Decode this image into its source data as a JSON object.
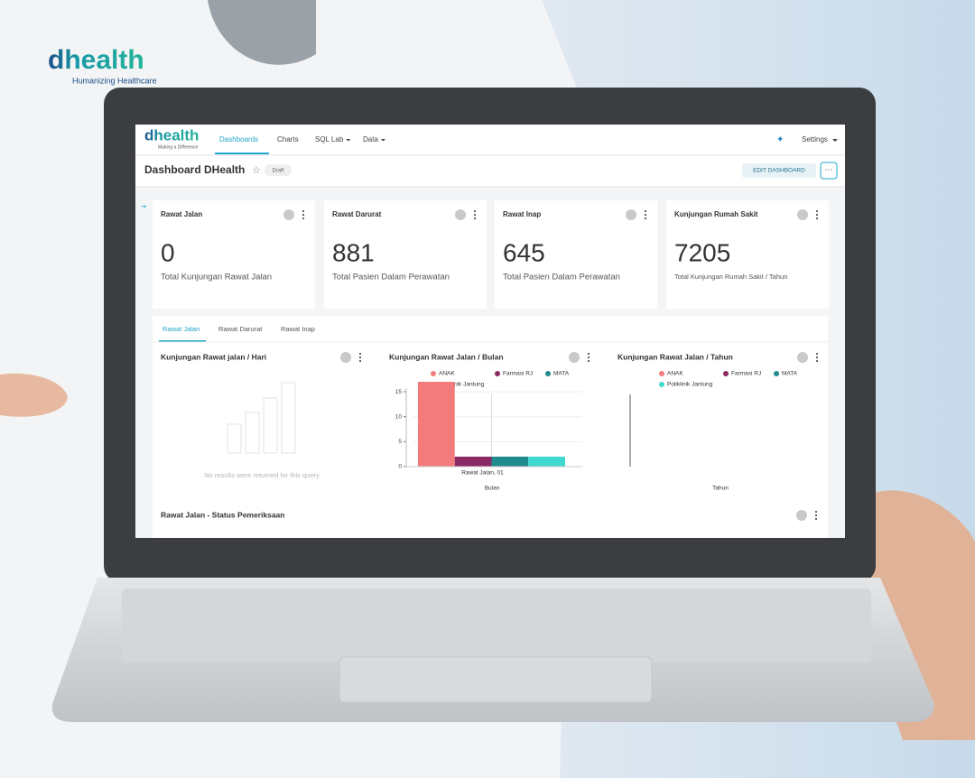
{
  "brand": {
    "logo": "dhealth",
    "tagline": "Humanizing Healthcare"
  },
  "nav": {
    "logo": "dhealth",
    "logo_tagline": "Making a Difference",
    "items": [
      "Dashboards",
      "Charts",
      "SQL Lab",
      "Data"
    ],
    "settings": "Settings"
  },
  "header": {
    "title": "Dashboard DHealth",
    "badge": "Draft",
    "edit_button": "EDIT DASHBOARD"
  },
  "kpis": [
    {
      "title": "Rawat Jalan",
      "value": 0,
      "caption": "Total Kunjungan Rawat Jalan"
    },
    {
      "title": "Rawat Darurat",
      "value": 881,
      "caption": "Total Pasien Dalam Perawatan"
    },
    {
      "title": "Rawat Inap",
      "value": 645,
      "caption": "Total Pasien Dalam Perawatan"
    },
    {
      "title": "Kunjungan Rumah Sakit",
      "value": 7205,
      "caption": "Total Kunjungan Rumah Sakit / Tahun"
    }
  ],
  "tabs": [
    "Rawat Jalan",
    "Rawat Darurat",
    "Rawat Inap"
  ],
  "panels": [
    {
      "title": "Kunjungan Rawat jalan / Hari",
      "empty_message": "No results were returned for this query"
    },
    {
      "title": "Kunjungan Rawat Jalan / Bulan",
      "chart": {
        "type": "bar",
        "categories": [
          "Rawat Jalan, 01"
        ],
        "x_label": "Bulan",
        "series": [
          {
            "name": "ANAK",
            "color": "#f47b7b",
            "values": [
              17
            ]
          },
          {
            "name": "Farmasi RJ",
            "color": "#8a2a63",
            "values": [
              2
            ]
          },
          {
            "name": "MATA",
            "color": "#1f8b8f",
            "values": [
              2
            ]
          },
          {
            "name": "Poliklinik Jantung",
            "color": "#3fd9cf",
            "values": [
              2
            ]
          }
        ],
        "ylim": [
          0,
          17
        ],
        "yticks": [
          0,
          5,
          10,
          15
        ]
      }
    },
    {
      "title": "Kunjungan Rawat Jalan / Tahun",
      "chart": {
        "type": "bar",
        "x_label": "Tahun",
        "series": [
          {
            "name": "ANAK",
            "color": "#f47b7b"
          },
          {
            "name": "Farmasi RJ",
            "color": "#8a2a63"
          },
          {
            "name": "MATA",
            "color": "#1f8b8f"
          },
          {
            "name": "Poliklinik Jantung",
            "color": "#3fd9cf"
          }
        ]
      }
    },
    {
      "title": "Rawat Jalan - Status Pemeriksaan"
    }
  ]
}
